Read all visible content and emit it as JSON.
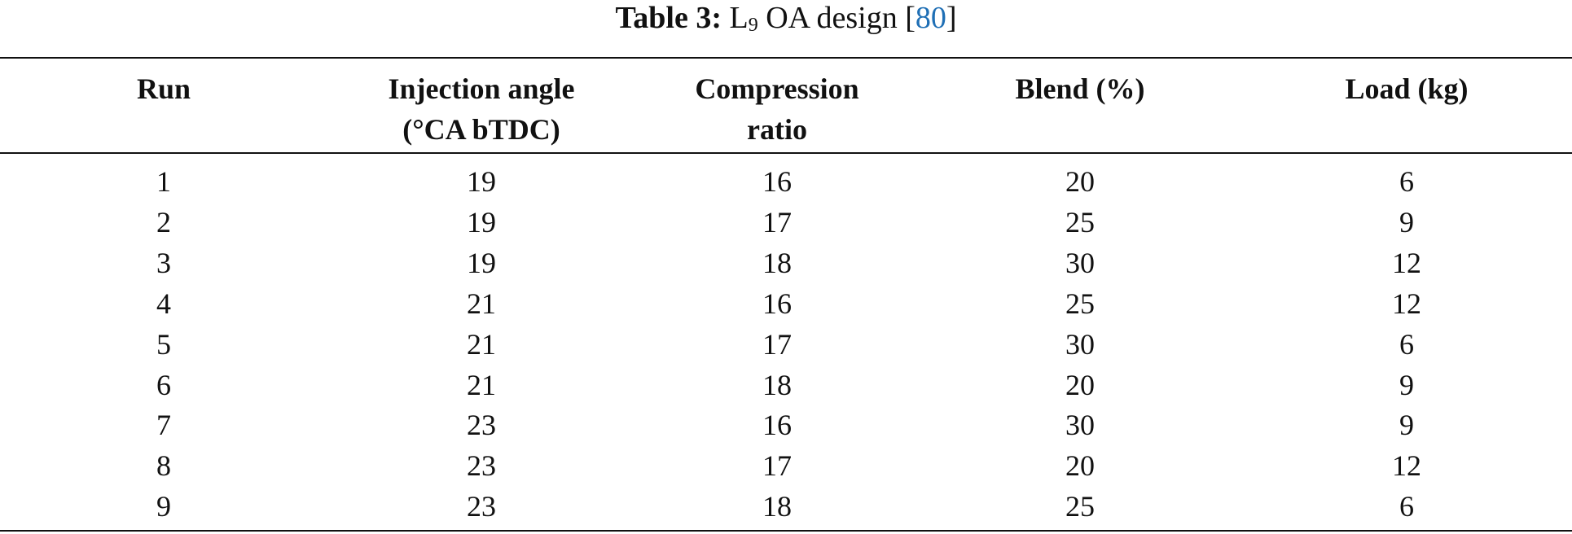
{
  "caption": {
    "label": "Table 3:",
    "title_main": "L",
    "title_sub": "9",
    "title_rest": "OA design",
    "citation_open": "[",
    "citation": "80",
    "citation_close": "]"
  },
  "table": {
    "headers": [
      [
        "Run"
      ],
      [
        "Injection angle",
        "(°CA bTDC)"
      ],
      [
        "Compression",
        "ratio"
      ],
      [
        "Blend (%)"
      ],
      [
        "Load (kg)"
      ]
    ],
    "rows": [
      [
        1,
        19,
        16,
        20,
        6
      ],
      [
        2,
        19,
        17,
        25,
        9
      ],
      [
        3,
        19,
        18,
        30,
        12
      ],
      [
        4,
        21,
        16,
        25,
        12
      ],
      [
        5,
        21,
        17,
        30,
        6
      ],
      [
        6,
        21,
        18,
        20,
        9
      ],
      [
        7,
        23,
        16,
        30,
        9
      ],
      [
        8,
        23,
        17,
        20,
        12
      ],
      [
        9,
        23,
        18,
        25,
        6
      ]
    ]
  }
}
